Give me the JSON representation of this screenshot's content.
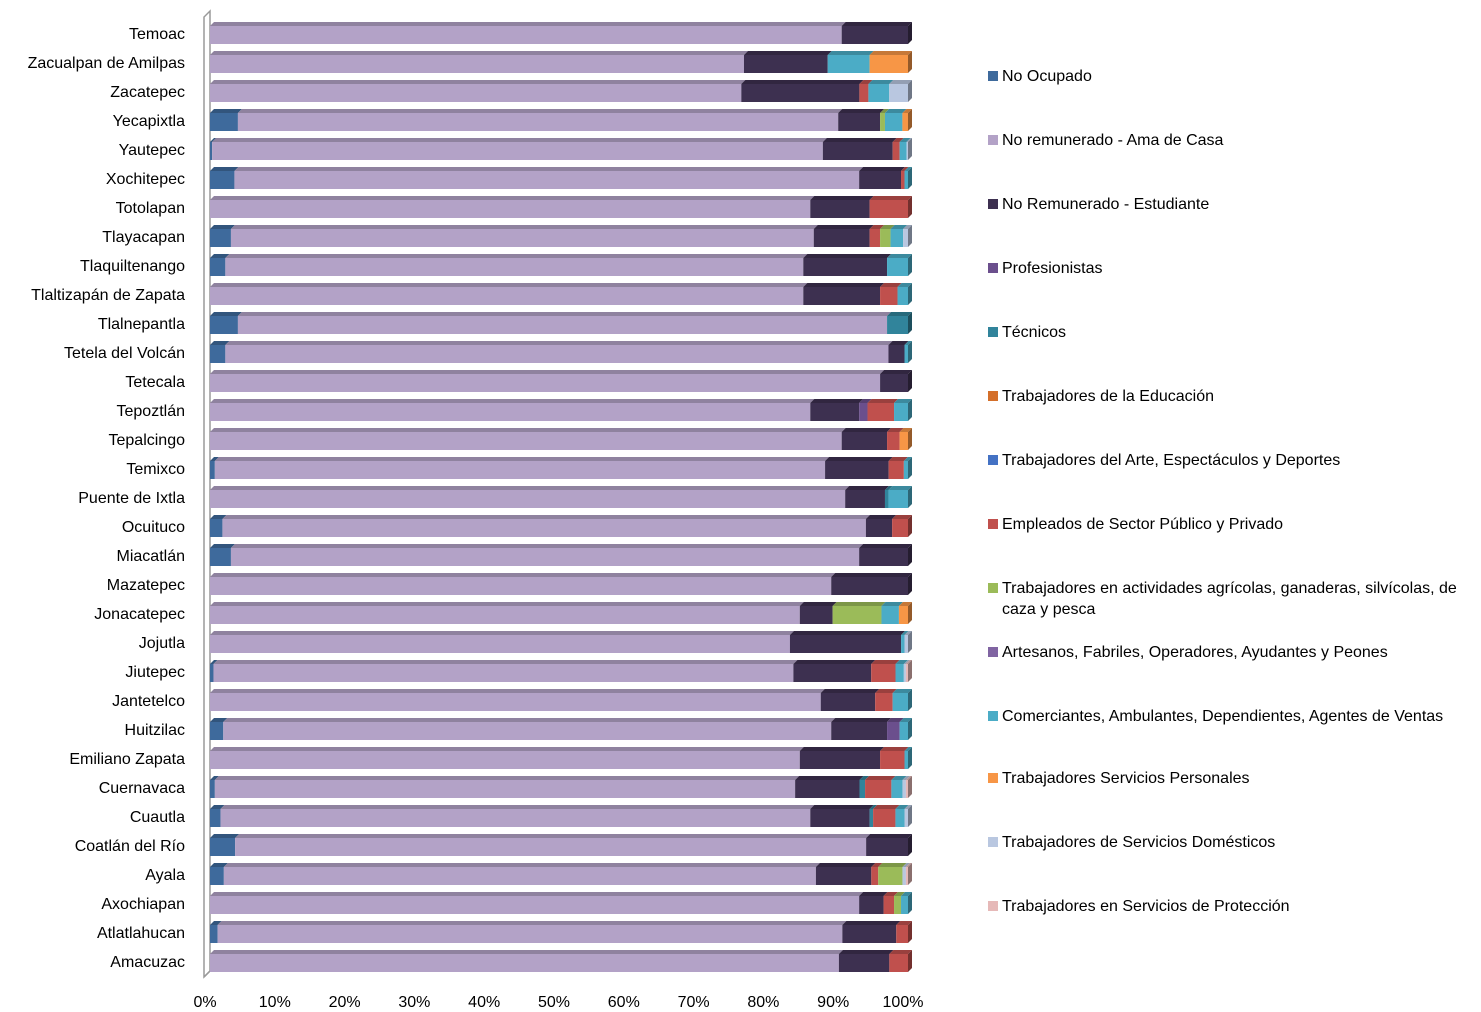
{
  "chart_data": {
    "type": "bar",
    "orientation": "horizontal",
    "stacked": "percent",
    "title": "",
    "xlabel": "",
    "ylabel": "",
    "xlim": [
      0,
      100
    ],
    "x_ticks": [
      "0%",
      "10%",
      "20%",
      "30%",
      "40%",
      "50%",
      "60%",
      "70%",
      "80%",
      "90%",
      "100%"
    ],
    "grid": false,
    "legend_position": "right",
    "categories": [
      "Temoac",
      "Zacualpan de Amilpas",
      "Zacatepec",
      "Yecapixtla",
      "Yautepec",
      "Xochitepec",
      "Totolapan",
      "Tlayacapan",
      "Tlaquiltenango",
      "Tlaltizapán de Zapata",
      "Tlalnepantla",
      "Tetela del Volcán",
      "Tetecala",
      "Tepoztlán",
      "Tepalcingo",
      "Temixco",
      "Puente de Ixtla",
      "Ocuituco",
      "Miacatlán",
      "Mazatepec",
      "Jonacatepec",
      "Jojutla",
      "Jiutepec",
      "Jantetelco",
      "Huitzilac",
      "Emiliano Zapata",
      "Cuernavaca",
      "Cuautla",
      "Coatlán del Río",
      "Ayala",
      "Axochiapan",
      "Atlatlahucan",
      "Amacuzac"
    ],
    "series": [
      {
        "name": "No Ocupado",
        "color": "#3E6A9C",
        "values": [
          0,
          0,
          0,
          4,
          0.3,
          3.5,
          0,
          3,
          2.2,
          0,
          4,
          2.2,
          0,
          0,
          0,
          0.7,
          0,
          1.8,
          3,
          0,
          0,
          0,
          0.5,
          0,
          1.9,
          0,
          0.7,
          1.5,
          3.6,
          2,
          0,
          1.1,
          0
        ]
      },
      {
        "name": "No remunerado - Ama de Casa",
        "color": "#B3A2C7",
        "values": [
          90.5,
          76.5,
          76.5,
          86,
          87.5,
          89.5,
          86,
          83.5,
          82.8,
          85,
          93,
          95,
          96,
          86,
          90.5,
          88.3,
          91,
          93.2,
          90,
          89,
          84.5,
          83.5,
          83.5,
          87.5,
          87.1,
          84.5,
          83.8,
          84.5,
          90.4,
          85.5,
          93,
          90.4,
          91
        ]
      },
      {
        "name": "No Remunerado - Estudiante",
        "color": "#3D3050",
        "values": [
          9.5,
          12,
          17,
          6,
          10,
          6,
          8.5,
          8,
          12,
          11,
          0,
          2.3,
          4,
          7,
          6.5,
          9.2,
          5.7,
          3.8,
          7,
          11,
          4.7,
          16,
          11.2,
          7.8,
          8,
          11.5,
          9.3,
          8.5,
          6,
          8,
          3.5,
          7.8,
          7.3
        ]
      },
      {
        "name": "Profesionistas",
        "color": "#6B4F8D",
        "values": [
          0,
          0,
          0,
          0,
          0,
          0,
          0,
          0,
          0,
          0,
          0,
          0,
          0,
          1.2,
          0,
          0,
          0,
          0,
          0,
          0,
          0,
          0,
          0,
          0,
          1.8,
          0,
          0,
          0,
          0,
          0,
          0,
          0,
          0
        ]
      },
      {
        "name": "Técnicos",
        "color": "#31849B",
        "values": [
          0,
          0,
          0,
          0,
          0,
          0,
          0,
          0,
          0,
          0,
          3,
          0,
          0,
          0,
          0,
          0,
          0.5,
          0,
          0,
          0,
          0,
          0,
          0,
          0,
          0,
          0,
          0.8,
          0.5,
          0,
          0,
          0,
          0,
          0
        ]
      },
      {
        "name": "Trabajadores de la Educación",
        "color": "#D46F2A",
        "values": [
          0,
          0,
          0,
          0,
          0,
          0,
          0,
          0,
          0,
          0,
          0,
          0,
          0,
          0,
          0,
          0,
          0,
          0,
          0,
          0,
          0,
          0,
          0,
          0,
          0,
          0,
          0,
          0,
          0,
          0,
          0,
          0,
          0
        ]
      },
      {
        "name": "Trabajadores del Arte, Espectáculos y Deportes",
        "color": "#4472C4",
        "values": [
          0,
          0,
          0,
          0,
          0,
          0,
          0,
          0,
          0,
          0,
          0,
          0,
          0,
          0,
          0,
          0,
          0,
          0,
          0,
          0,
          0,
          0,
          0,
          0,
          0,
          0,
          0,
          0,
          0,
          0,
          0,
          0,
          0
        ]
      },
      {
        "name": "Empleados de Sector Público y Privado",
        "color": "#C0504D",
        "values": [
          0,
          0,
          1.3,
          0,
          1,
          0.5,
          5.5,
          1.5,
          0,
          2.5,
          0,
          0,
          0,
          3.8,
          1.8,
          2.2,
          0,
          2.3,
          0,
          0,
          0,
          0,
          3.5,
          2.5,
          0,
          3.5,
          3.8,
          3.2,
          0,
          1,
          1.5,
          1.7,
          2.7
        ]
      },
      {
        "name": "Trabajadores en actividades agrícolas, ganaderas, silvícolas, de caza y pesca",
        "color": "#9BBB59",
        "values": [
          0,
          0,
          0,
          0.7,
          0,
          0,
          0,
          1.5,
          0,
          0,
          0,
          0,
          0,
          0,
          0,
          0,
          0,
          0,
          0,
          0,
          7,
          0,
          0,
          0,
          0,
          0,
          0,
          0,
          0,
          3.5,
          1,
          0,
          0
        ]
      },
      {
        "name": "Artesanos, Fabriles, Operadores, Ayudantes y Peones",
        "color": "#8064A2",
        "values": [
          0,
          0,
          0,
          0,
          0,
          0,
          0,
          0,
          0,
          0,
          0,
          0,
          0,
          0,
          0,
          0,
          0,
          0,
          0,
          0,
          0,
          0,
          0,
          0,
          0,
          0,
          0,
          0,
          0,
          0,
          0,
          0,
          0
        ]
      },
      {
        "name": "Comerciantes, Ambulantes, Dependientes, Agentes de Ventas",
        "color": "#4BACC6",
        "values": [
          0,
          6,
          3,
          2.5,
          1,
          0.5,
          0,
          1.8,
          3,
          1.5,
          0,
          0.5,
          0,
          2,
          0,
          0.6,
          2.8,
          0,
          0,
          0,
          2.5,
          0.5,
          1.2,
          2.2,
          1.2,
          0.5,
          1.6,
          1.3,
          0,
          0,
          1,
          0,
          0
        ]
      },
      {
        "name": "Trabajadores Servicios Personales",
        "color": "#F79646",
        "values": [
          0,
          5.5,
          0,
          0.8,
          0,
          0,
          0,
          0,
          0,
          0,
          0,
          0,
          0,
          0,
          1.2,
          0,
          0,
          0,
          0,
          0,
          1.3,
          0,
          0,
          0,
          0,
          0,
          0,
          0,
          0,
          0,
          0,
          0,
          0
        ]
      },
      {
        "name": "Trabajadores de Servicios Domésticos",
        "color": "#B9C7E0",
        "values": [
          0,
          0,
          2.7,
          0,
          0.2,
          0,
          0,
          0.7,
          0,
          0,
          0,
          0,
          0,
          0,
          0,
          0,
          0,
          0,
          0,
          0,
          0,
          0.5,
          0.3,
          0,
          0,
          0,
          0.5,
          0.5,
          0,
          0.5,
          0,
          0,
          0
        ]
      },
      {
        "name": "Trabajadores en Servicios de Protección",
        "color": "#E6B9B8",
        "values": [
          0,
          0,
          0,
          0,
          0,
          0,
          0,
          0,
          0,
          0,
          0,
          0,
          0,
          0,
          0,
          0,
          0,
          0,
          0,
          0,
          0,
          0,
          0.3,
          0,
          0,
          0,
          0.3,
          0,
          0,
          0.3,
          0,
          0,
          0
        ]
      }
    ]
  }
}
